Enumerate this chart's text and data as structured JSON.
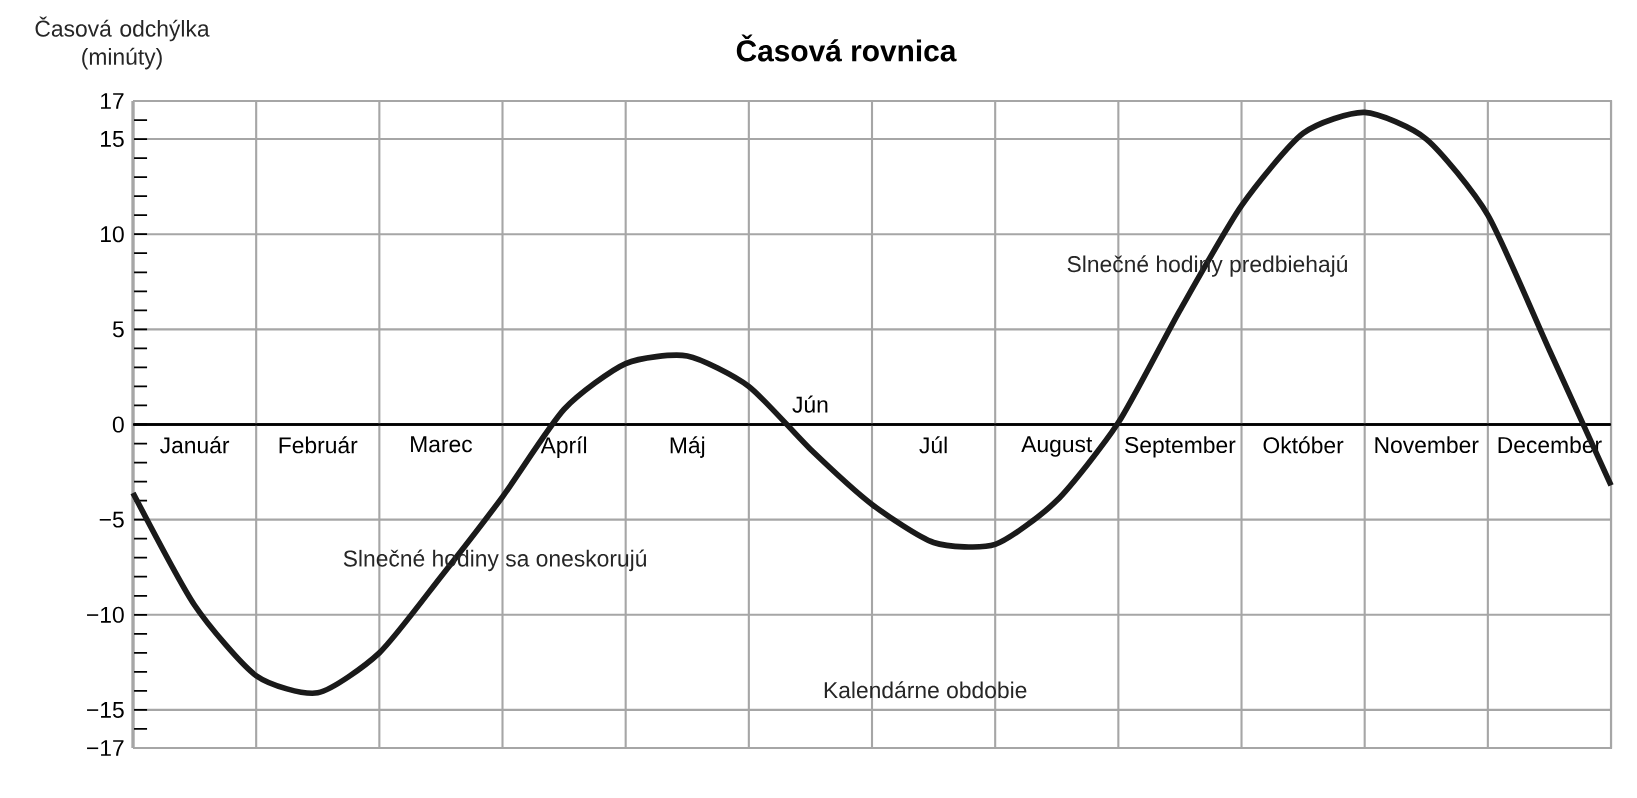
{
  "chart_data": {
    "type": "line",
    "title": "Časová rovnica",
    "ylabel": "Časová odchýlka (minúty)",
    "xlabel": "Kalendárne obdobie",
    "annotations": [
      "Slnečné hodiny predbiehajú",
      "Slnečné hodiny sa oneskorujú"
    ],
    "categories": [
      null,
      "Január",
      null,
      "Február",
      null,
      "Marec",
      null,
      "Apríl",
      null,
      "Máj",
      null,
      "Jún",
      null,
      "Júl",
      null,
      "August",
      null,
      "September",
      null,
      "Október",
      null,
      "November",
      null,
      "December",
      null
    ],
    "series": [
      {
        "color": "#1a1a1a",
        "values": [
          -3.6,
          -9.5,
          -13.2,
          -14.1,
          -12.0,
          -8.0,
          -3.8,
          0.8,
          3.2,
          3.6,
          2.0,
          -1.3,
          -4.2,
          -6.2,
          -6.3,
          -4.0,
          0.1,
          6.0,
          11.5,
          15.3,
          16.4,
          15.0,
          11.0,
          3.9,
          -3.2
        ]
      }
    ],
    "ylim": [
      -17,
      17
    ],
    "yticks": [
      {
        "value": -17,
        "label": "−17"
      },
      {
        "value": -15,
        "label": "−15"
      },
      {
        "value": -10,
        "label": "−10"
      },
      {
        "value": -5,
        "label": "−5"
      },
      0,
      5,
      10,
      15,
      17
    ],
    "grid": true,
    "marker": "none",
    "line_style": "solid"
  }
}
